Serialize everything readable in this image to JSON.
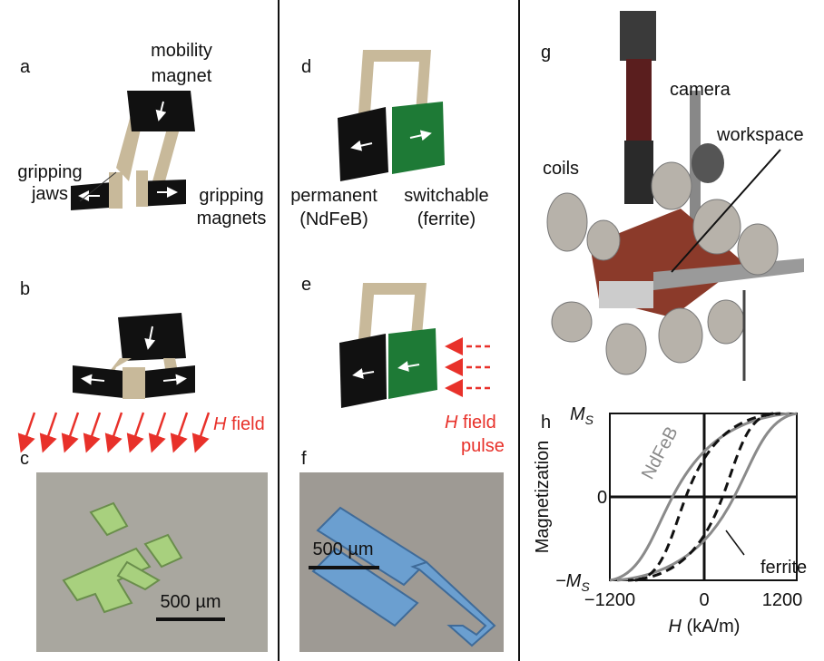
{
  "panels": {
    "a": {
      "letter": "a",
      "mobility_magnet": [
        "mobility",
        "magnet"
      ],
      "gripping_jaws": [
        "gripping",
        "jaws"
      ],
      "gripping_magnets": [
        "gripping",
        "magnets"
      ]
    },
    "b": {
      "letter": "b",
      "field_label": {
        "italic": "H",
        "rest": " field"
      }
    },
    "c": {
      "letter": "c",
      "scale_bar": "500 µm"
    },
    "d": {
      "letter": "d",
      "permanent": [
        "permanent",
        "(NdFeB)"
      ],
      "switchable": [
        "switchable",
        "(ferrite)"
      ]
    },
    "e": {
      "letter": "e",
      "field_label": {
        "italic": "H",
        "rest": " field"
      },
      "pulse": "pulse"
    },
    "f": {
      "letter": "f",
      "scale_bar": "500 µm"
    },
    "g": {
      "letter": "g",
      "camera": "camera",
      "workspace": "workspace",
      "coils": "coils"
    },
    "h": {
      "letter": "h",
      "y_axis_label": "Magnetization",
      "x_axis_label": {
        "italic": "H",
        "rest": " (kA/m)"
      },
      "y_tick_labels": [
        {
          "text": "M",
          "sub": "S"
        },
        {
          "text": "0"
        },
        {
          "text": "−M",
          "sub": "S"
        }
      ],
      "x_tick_labels": [
        "−1200",
        "0",
        "1200"
      ],
      "curve_labels": [
        "NdFeB",
        "ferrite"
      ]
    }
  }
}
